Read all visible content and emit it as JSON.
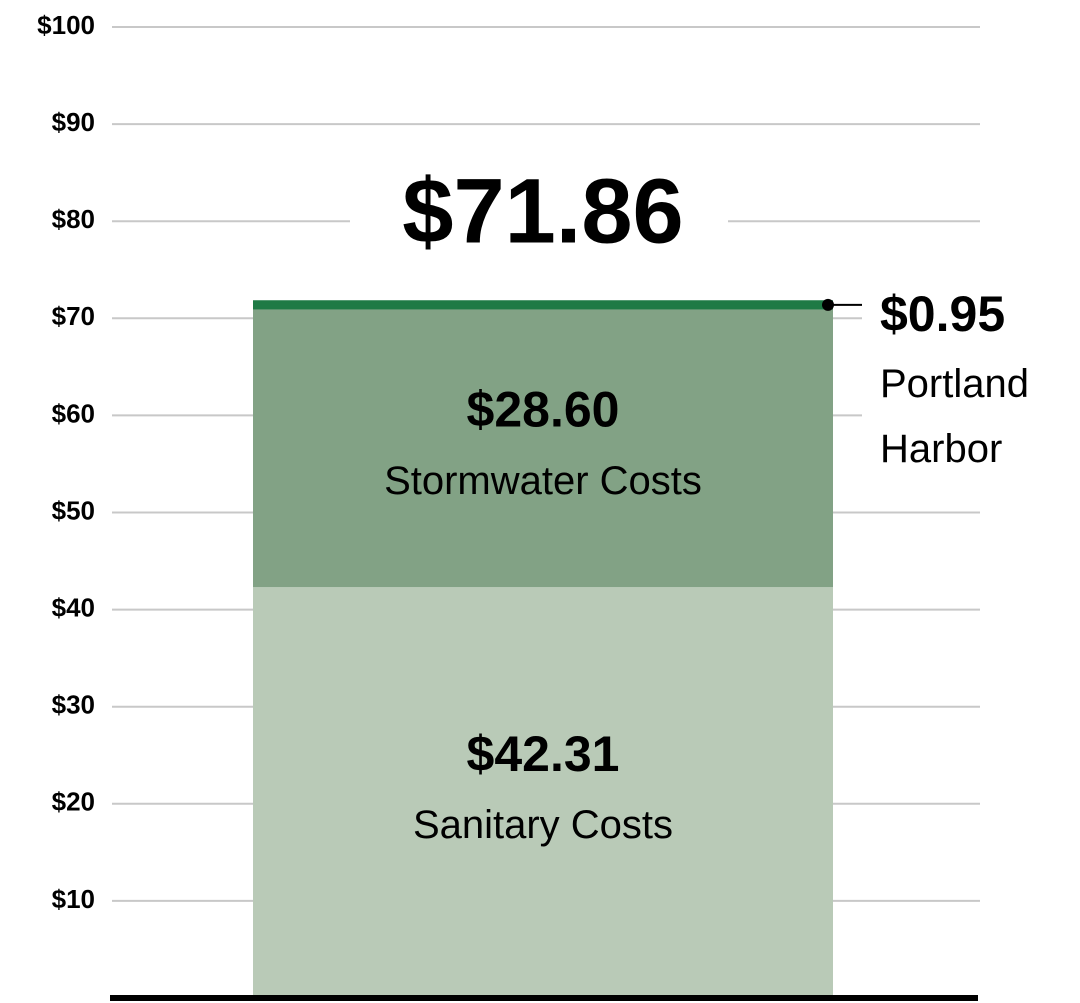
{
  "chart_data": {
    "type": "stacked_bar",
    "categories": [
      null
    ],
    "series": [
      {
        "name": "Sanitary Costs",
        "color": "#b9cab7",
        "values": [
          42.31
        ],
        "value_labels": [
          "$42.31"
        ]
      },
      {
        "name": "Stormwater Costs",
        "color": "#82a285",
        "values": [
          28.6
        ],
        "value_labels": [
          "$28.60"
        ]
      },
      {
        "name": "Portland Harbor",
        "color": "#1e7a45",
        "values": [
          0.95
        ],
        "value_labels": [
          "$0.95"
        ]
      }
    ],
    "total": 71.86,
    "total_label": "$71.86",
    "ylim": [
      0,
      100
    ],
    "yticks": [
      {
        "value": 10,
        "label": "$10"
      },
      {
        "value": 20,
        "label": "$20"
      },
      {
        "value": 30,
        "label": "$30"
      },
      {
        "value": 40,
        "label": "$40"
      },
      {
        "value": 50,
        "label": "$50"
      },
      {
        "value": 60,
        "label": "$60"
      },
      {
        "value": 70,
        "label": "$70"
      },
      {
        "value": 80,
        "label": "$80"
      },
      {
        "value": 90,
        "label": "$90"
      },
      {
        "value": 100,
        "label": "$100"
      }
    ],
    "grid": true
  }
}
